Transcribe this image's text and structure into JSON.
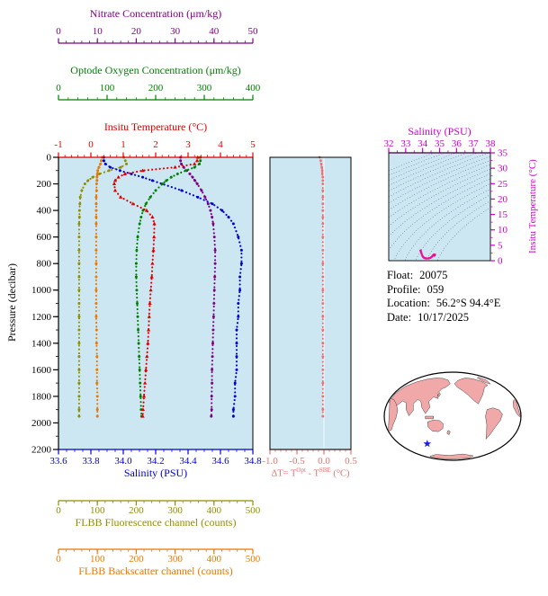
{
  "info": {
    "rows": [
      {
        "label": "Float:",
        "value": "20075"
      },
      {
        "label": "Profile:",
        "value": "059"
      },
      {
        "label": "Location:",
        "value": "56.2°S  94.4°E"
      },
      {
        "label": "Date:",
        "value": "10/17/2025"
      }
    ]
  },
  "map": {
    "land_color": "#f1a8a8",
    "ocean_color": "#ffffff",
    "outline_color": "#000000",
    "marker_color": "#2020e0",
    "marker": "float-position-star"
  },
  "chart_data": [
    {
      "type": "line",
      "name": "profile-plot",
      "bg": "#cde7f2",
      "pressure_axis": {
        "label": "Pressure (decibar)",
        "min": 0,
        "max": 2200,
        "minor_step": 100,
        "color": "#000000",
        "tick_values": [
          0,
          200,
          400,
          600,
          800,
          1000,
          1200,
          1400,
          1600,
          1800,
          2000,
          2200
        ],
        "tick_labels": [
          "0",
          "200",
          "400",
          "600",
          "800",
          "1000",
          "1200",
          "1400",
          "1600",
          "1800",
          "2000",
          "2200"
        ]
      },
      "x_axes": {
        "nitrate": {
          "title": "Nitrate Concentration (μm/kg)",
          "color": "#800080",
          "min": 0,
          "max": 50,
          "minor_step": 2,
          "tick_values": [
            0,
            10,
            20,
            30,
            40,
            50
          ],
          "tick_labels": [
            "0",
            "10",
            "20",
            "30",
            "40",
            "50"
          ]
        },
        "oxygen": {
          "title": "Optode Oxygen Concentration (μm/kg)",
          "color": "#007f00",
          "min": 0,
          "max": 400,
          "minor_step": 20,
          "tick_values": [
            0,
            100,
            200,
            300,
            400
          ],
          "tick_labels": [
            "0",
            "100",
            "200",
            "300",
            "400"
          ]
        },
        "temperature": {
          "title": "Insitu Temperature (°C)",
          "color": "#e00000",
          "min": -1,
          "max": 5,
          "minor_step": 0.2,
          "tick_values": [
            -1,
            0,
            1,
            2,
            3,
            4,
            5
          ],
          "tick_labels": [
            "-1",
            "0",
            "1",
            "2",
            "3",
            "4",
            "5"
          ]
        },
        "salinity": {
          "title": "Salinity (PSU)",
          "color": "#0000cc",
          "min": 33.6,
          "max": 34.8,
          "minor_step": 0.05,
          "tick_values": [
            33.6,
            33.8,
            34.0,
            34.2,
            34.4,
            34.6,
            34.8
          ],
          "tick_labels": [
            "33.6",
            "33.8",
            "34.0",
            "34.2",
            "34.4",
            "34.6",
            "34.8"
          ]
        },
        "fluorescence": {
          "title": "FLBB Fluorescence channel (counts)",
          "color": "#8f8f00",
          "min": 0,
          "max": 500,
          "minor_step": 20,
          "tick_values": [
            0,
            100,
            200,
            300,
            400,
            500
          ],
          "tick_labels": [
            "0",
            "100",
            "200",
            "300",
            "400",
            "500"
          ]
        },
        "backscatter": {
          "title": "FLBB Backscatter channel (counts)",
          "color": "#e87800",
          "min": 0,
          "max": 500,
          "minor_step": 20,
          "tick_values": [
            0,
            100,
            200,
            300,
            400,
            500
          ],
          "tick_labels": [
            "0",
            "100",
            "200",
            "300",
            "400",
            "500"
          ]
        }
      },
      "pressure": [
        0,
        25,
        50,
        75,
        100,
        125,
        150,
        175,
        200,
        250,
        300,
        350,
        400,
        450,
        500,
        600,
        700,
        800,
        900,
        1000,
        1100,
        1200,
        1300,
        1400,
        1500,
        1600,
        1700,
        1800,
        1900,
        1950
      ],
      "profiles": {
        "temperature": [
          3.3,
          3.28,
          3.2,
          2.6,
          1.6,
          1.05,
          0.85,
          0.75,
          0.72,
          0.75,
          0.92,
          1.3,
          1.72,
          1.9,
          1.96,
          1.95,
          1.93,
          1.9,
          1.88,
          1.85,
          1.82,
          1.8,
          1.78,
          1.76,
          1.73,
          1.7,
          1.67,
          1.64,
          1.61,
          1.6
        ],
        "salinity": [
          33.88,
          33.88,
          33.89,
          33.92,
          33.98,
          34.05,
          34.12,
          34.18,
          34.24,
          34.36,
          34.46,
          34.55,
          34.61,
          34.65,
          34.68,
          34.71,
          34.73,
          34.73,
          34.72,
          34.72,
          34.71,
          34.71,
          34.7,
          34.7,
          34.7,
          34.7,
          34.69,
          34.69,
          34.68,
          34.68
        ],
        "oxygen": [
          292,
          292,
          290,
          280,
          262,
          245,
          232,
          222,
          214,
          200,
          189,
          180,
          174,
          170,
          167,
          163,
          161,
          160,
          160,
          161,
          162,
          163,
          164,
          165,
          166,
          167,
          168,
          169,
          170,
          171
        ],
        "nitrate": [
          31.4,
          31.4,
          31.6,
          32.2,
          33.0,
          33.8,
          34.5,
          35.1,
          35.7,
          36.8,
          37.7,
          38.5,
          39.1,
          39.5,
          39.8,
          40.1,
          40.3,
          40.3,
          40.2,
          40.1,
          40.0,
          39.9,
          39.8,
          39.7,
          39.6,
          39.5,
          39.5,
          39.4,
          39.4,
          39.3
        ],
        "fluorescence": [
          168,
          172,
          175,
          160,
          130,
          105,
          88,
          76,
          68,
          60,
          56,
          55,
          54,
          54,
          53,
          53,
          53,
          53,
          53,
          53,
          53,
          53,
          53,
          53,
          53,
          53,
          53,
          53,
          53,
          53
        ],
        "backscatter": [
          112,
          110,
          108,
          104,
          101,
          100,
          99,
          99,
          98,
          98,
          97,
          97,
          97,
          97,
          97,
          97,
          97,
          97,
          97,
          97,
          97,
          97,
          98,
          98,
          99,
          99,
          99,
          100,
          100,
          100
        ]
      }
    },
    {
      "type": "line",
      "name": "temperature-difference-plot",
      "bg": "#cde7f2",
      "title_parts": [
        "ΔT= T",
        "Opt",
        " - T",
        "SBE",
        " (°C)"
      ],
      "x_axis": {
        "min": -1.0,
        "max": 0.5,
        "minor_step": 0.1,
        "color": "#ef6f6f",
        "tick_values": [
          -1.0,
          -0.5,
          0.0,
          0.5
        ],
        "tick_labels": [
          "-1.0",
          "-0.5",
          "0.0",
          "0.5"
        ]
      },
      "values": [
        -0.08,
        -0.06,
        -0.05,
        -0.04,
        -0.03,
        -0.03,
        -0.02,
        -0.02,
        -0.02,
        -0.02,
        -0.02,
        -0.02,
        -0.02,
        -0.02,
        -0.02,
        -0.02,
        -0.02,
        -0.02,
        -0.02,
        -0.02,
        -0.02,
        -0.02,
        -0.02,
        -0.02,
        -0.02,
        -0.02,
        -0.02,
        -0.02,
        -0.02,
        -0.02
      ]
    },
    {
      "type": "scatter",
      "name": "temperature-salinity-diagram",
      "bg": "#cde7f2",
      "point_color": "#ee1199",
      "contour_color": "#39607e",
      "x_axis": {
        "label": "Salinity (PSU)",
        "color": "#cc00cc",
        "min": 32,
        "max": 38,
        "minor_step": 0.5,
        "tick_values": [
          32,
          33,
          34,
          35,
          36,
          37,
          38
        ],
        "tick_labels": [
          "32",
          "33",
          "34",
          "35",
          "36",
          "37",
          "38"
        ]
      },
      "y_axis": {
        "label": "Insitu Temperature (°C)",
        "color": "#cc00cc",
        "min": 0,
        "max": 35,
        "minor_step": 2.5,
        "tick_values": [
          0,
          5,
          10,
          15,
          20,
          25,
          30,
          35
        ],
        "tick_labels": [
          "0",
          "5",
          "10",
          "15",
          "20",
          "25",
          "30",
          "35"
        ]
      },
      "sigma_levels": [
        20,
        20.5,
        21,
        21.5,
        22,
        22.5,
        23,
        23.5,
        24,
        24.5,
        25,
        25.5,
        26,
        26.5,
        27,
        27.5,
        28
      ],
      "note": "points are temperature vs salinity of profile in chart_data[0]"
    }
  ]
}
